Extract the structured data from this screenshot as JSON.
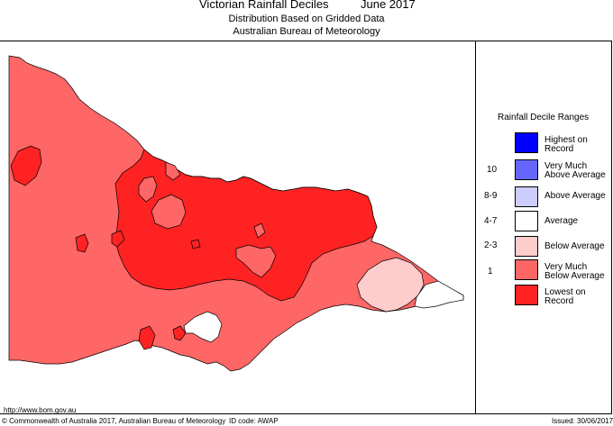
{
  "header": {
    "title": "Victorian Rainfall Deciles",
    "date": "June 2017",
    "subtitle1": "Distribution Based on Gridded Data",
    "subtitle2": "Australian Bureau of Meteorology"
  },
  "legend": {
    "title": "Rainfall Decile Ranges",
    "items": [
      {
        "label": "Highest on Record",
        "range": "",
        "color": "#0000ff"
      },
      {
        "label": "Very Much Above Average",
        "range": "10",
        "color": "#6666ff"
      },
      {
        "label": "Above Average",
        "range": "8-9",
        "color": "#ccccff"
      },
      {
        "label": "Average",
        "range": "4-7",
        "color": "#ffffff"
      },
      {
        "label": "Below Average",
        "range": "2-3",
        "color": "#ffcccc"
      },
      {
        "label": "Very Much Below Average",
        "range": "1",
        "color": "#ff6666"
      },
      {
        "label": "Lowest on Record",
        "range": "",
        "color": "#ff2222"
      }
    ]
  },
  "footer": {
    "url": "http://www.bom.gov.au",
    "copyright": "© Commonwealth of Australia 2017, Australian Bureau of Meteorology",
    "id_code": "ID code: AWAP",
    "issued": "Issued: 30/06/2017"
  }
}
